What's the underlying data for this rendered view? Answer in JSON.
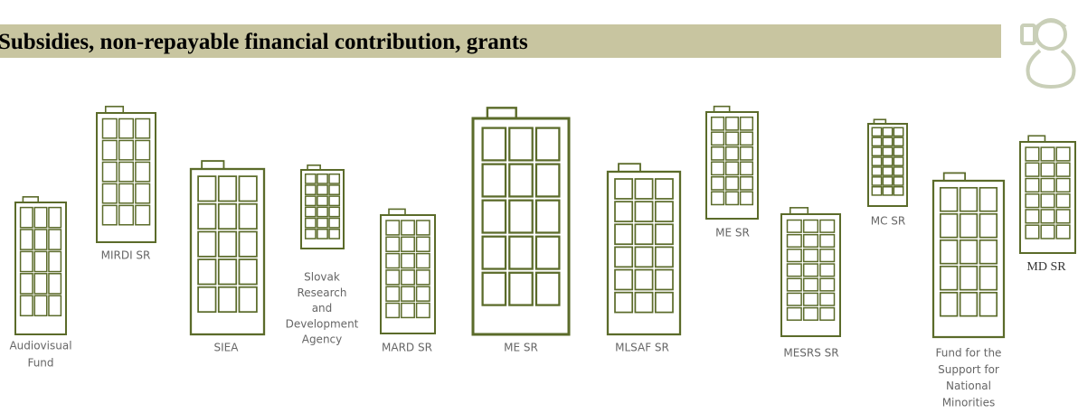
{
  "header": {
    "title": "Subsidies, non-repayable financial contribution, grants"
  },
  "buildings": [
    {
      "label_lines": [
        "Audiovisual",
        "Fund"
      ]
    },
    {
      "label_lines": [
        "MIRDI SR"
      ]
    },
    {
      "label_lines": [
        "SIEA"
      ]
    },
    {
      "label_lines": [
        "Slovak",
        "Research",
        "and",
        "Development",
        "Agency"
      ]
    },
    {
      "label_lines": [
        "MARD SR"
      ]
    },
    {
      "label_lines": [
        "ME SR"
      ]
    },
    {
      "label_lines": [
        "MLSAF SR"
      ]
    },
    {
      "label_lines": [
        "ME SR"
      ]
    },
    {
      "label_lines": [
        "MESRS SR"
      ]
    },
    {
      "label_lines": [
        "MC SR"
      ]
    },
    {
      "label_lines": [
        "Fund for the",
        "Support for",
        "National",
        "Minorities"
      ]
    },
    {
      "label_lines": [
        "MD SR"
      ]
    }
  ]
}
